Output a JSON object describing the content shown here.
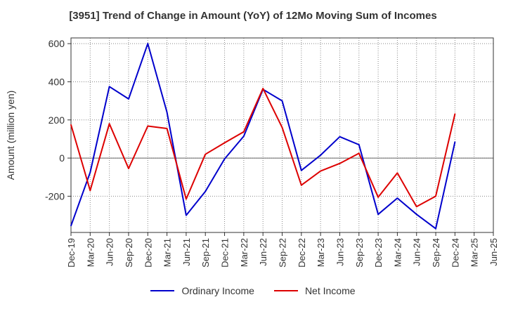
{
  "chart_data": {
    "type": "line",
    "title": "[3951]  Trend of Change in Amount (YoY) of 12Mo Moving Sum of Incomes",
    "ylabel": "Amount (million yen)",
    "xlabel": "",
    "ylim": [
      -390,
      630
    ],
    "yticks": [
      600,
      400,
      200,
      0,
      -200
    ],
    "ytick_labels": [
      "600",
      "400",
      "200",
      "0",
      "-200"
    ],
    "categories": [
      "Dec-19",
      "Mar-20",
      "Jun-20",
      "Sep-20",
      "Dec-20",
      "Mar-21",
      "Jun-21",
      "Sep-21",
      "Dec-21",
      "Mar-22",
      "Jun-22",
      "Sep-22",
      "Dec-22",
      "Mar-23",
      "Jun-23",
      "Sep-23",
      "Dec-23",
      "Mar-24",
      "Jun-24",
      "Sep-24",
      "Dec-24",
      "Mar-25"
    ],
    "tick_labels": [
      "Dec-19",
      "Mar-20",
      "Jun-20",
      "Sep-20",
      "Dec-20",
      "Mar-21",
      "Jun-21",
      "Sep-21",
      "Dec-21",
      "Mar-22",
      "Jun-22",
      "Sep-22",
      "Dec-22",
      "Mar-23",
      "Jun-23",
      "Sep-23",
      "Dec-23",
      "Mar-24",
      "Jun-24",
      "Sep-24",
      "Dec-24",
      "Mar-25",
      "Jun-25"
    ],
    "grid": true,
    "legend_position": "bottom",
    "series": [
      {
        "name": "Ordinary Income",
        "color": "#0000cc",
        "values": [
          -355,
          -75,
          375,
          310,
          600,
          240,
          -300,
          -175,
          -5,
          115,
          360,
          300,
          -65,
          15,
          112,
          70,
          -295,
          -210,
          -295,
          -370,
          85,
          null
        ]
      },
      {
        "name": "Net Income",
        "color": "#dd0000",
        "values": [
          175,
          -170,
          180,
          -55,
          168,
          155,
          -215,
          20,
          80,
          138,
          365,
          160,
          -142,
          -68,
          -28,
          25,
          -205,
          -78,
          -255,
          -200,
          232,
          null
        ]
      }
    ]
  }
}
